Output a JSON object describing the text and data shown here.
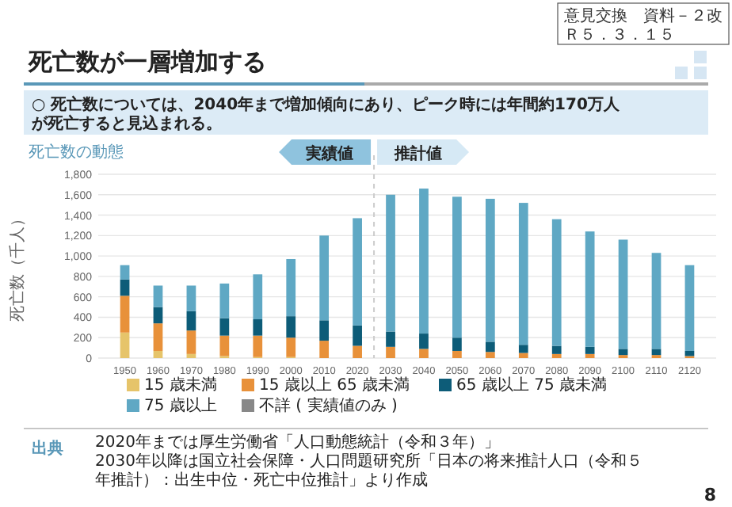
{
  "chart_data": {
    "type": "bar",
    "stacked": true,
    "title": "死亡数が一層増加する",
    "subtitle": "○ 死亡数については、2040年まで増加傾向にあり、ピーク時には年間約170万人が死亡すると見込まれる。",
    "ylabel": "死亡数（千人）",
    "x": [
      1950,
      1960,
      1970,
      1980,
      1990,
      2000,
      2010,
      2020,
      2030,
      2040,
      2050,
      2060,
      2070,
      2080,
      2090,
      2100,
      2110,
      2120
    ],
    "xlim": [
      1942,
      2128
    ],
    "xticks": [
      1950,
      1960,
      1970,
      1980,
      1990,
      2000,
      2010,
      2020,
      2030,
      2040,
      2050,
      2060,
      2070,
      2080,
      2090,
      2100,
      2110,
      2120
    ],
    "ylim": [
      0,
      1800
    ],
    "yticks": [
      0,
      {
        "value": 200,
        "label": "200"
      },
      {
        "value": 400,
        "label": "400"
      },
      {
        "value": 600,
        "label": "600"
      },
      {
        "value": 800,
        "label": "800"
      },
      {
        "value": 1000,
        "label": "1,000"
      },
      {
        "value": 1200,
        "label": "1,200"
      },
      {
        "value": 1400,
        "label": "1,400"
      },
      {
        "value": 1600,
        "label": "1,600"
      },
      {
        "value": 1800,
        "label": "1,800"
      }
    ],
    "grid": "y",
    "legend": "bottom",
    "series": [
      {
        "name": "15 歳未満",
        "color": "#e6c46a",
        "values": [
          250,
          70,
          40,
          20,
          10,
          10,
          0,
          0,
          0,
          0,
          0,
          0,
          0,
          0,
          0,
          0,
          0,
          0
        ]
      },
      {
        "name": "15 歳以上 65 歳未満",
        "color": "#e8913a",
        "values": [
          360,
          270,
          230,
          200,
          210,
          190,
          170,
          120,
          110,
          90,
          70,
          60,
          50,
          40,
          40,
          30,
          30,
          20
        ]
      },
      {
        "name": "65 歳以上 75 歳未満",
        "color": "#0d5c78",
        "values": [
          160,
          160,
          190,
          170,
          160,
          210,
          200,
          200,
          150,
          150,
          130,
          100,
          80,
          80,
          70,
          60,
          60,
          50
        ]
      },
      {
        "name": "75 歳以上",
        "color": "#5fa8c4",
        "values": [
          140,
          210,
          250,
          340,
          440,
          560,
          830,
          1050,
          1340,
          1420,
          1380,
          1400,
          1390,
          1240,
          1130,
          1070,
          940,
          840
        ]
      },
      {
        "name": "不詳 ( 実績値のみ )",
        "color": "#888888",
        "values": [
          0,
          0,
          0,
          0,
          0,
          0,
          0,
          0,
          null,
          null,
          null,
          null,
          null,
          null,
          null,
          null,
          null,
          null
        ]
      }
    ],
    "ref_lines": [
      {
        "axis": "x",
        "value": 2025,
        "line_style": "dashed",
        "color": "#cccccc"
      }
    ],
    "annotations": [
      "意見交換　資料－２改",
      "Ｒ５．３．１５",
      "死亡数の動態",
      "実績値",
      "推計値",
      "出典",
      "2020年までは厚生労働省「人口動態統計（令和３年）」",
      "2030年以降は国立社会保障・人口問題研究所「日本の将来推計人口（令和５年推計）：出生中位・死亡中位推計」より作成",
      "8"
    ]
  }
}
